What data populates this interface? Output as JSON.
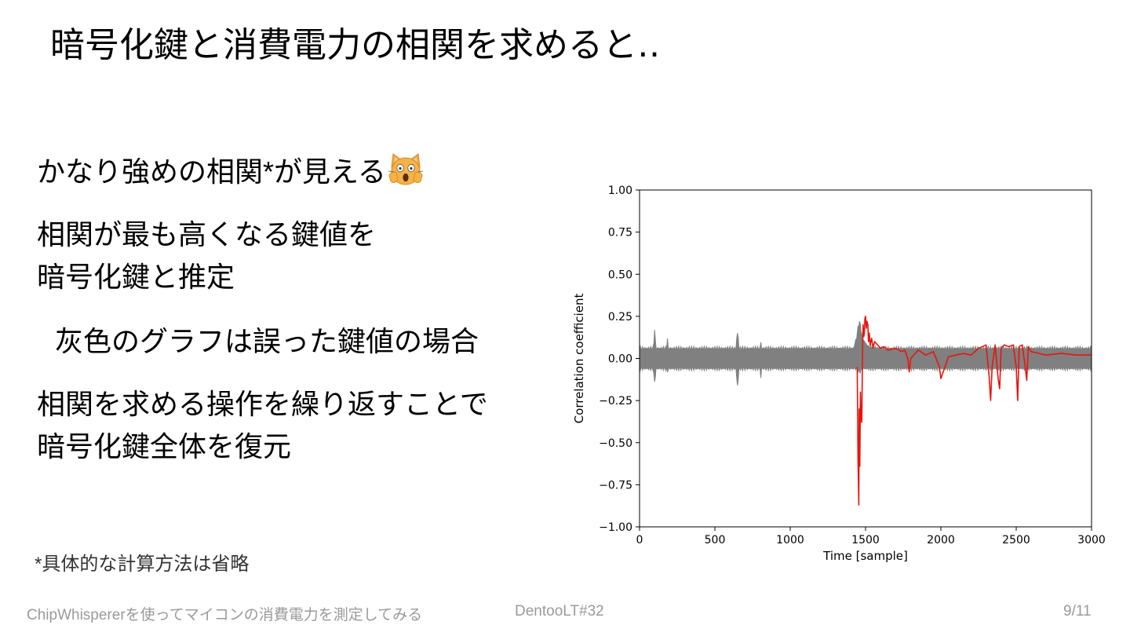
{
  "slide": {
    "title": "暗号化鍵と消費電力の相関を求めると‥",
    "bullets": [
      {
        "lines": [
          "かなり強めの相関*が見える"
        ],
        "emoji": "face-screaming-cat-icon"
      },
      {
        "lines": [
          "相関が最も高くなる鍵値を",
          "暗号化鍵と推定"
        ]
      },
      {
        "lines": [
          "灰色のグラフは誤った鍵値の場合"
        ]
      },
      {
        "lines": [
          "相関を求める操作を繰り返すことで",
          "暗号化鍵全体を復元"
        ]
      }
    ],
    "footnote": "*具体的な計算方法は省略"
  },
  "footer": {
    "left": "ChipWhispererを使ってマイコンの消費電力を測定してみる",
    "center": "DentooLT#32",
    "page": "9/11"
  },
  "colors": {
    "correct_key": "#e8140e",
    "wrong_keys": "#808080"
  },
  "chart_data": {
    "type": "line",
    "title": "",
    "xlabel": "Time [sample]",
    "ylabel": "Correlation coefficient",
    "xlim": [
      0,
      3000
    ],
    "ylim": [
      -1.0,
      1.0
    ],
    "xticks": [
      "0",
      "500",
      "1000",
      "1500",
      "2000",
      "2500",
      "3000"
    ],
    "yticks": [
      "1.00",
      "0.75",
      "0.50",
      "0.25",
      "0.00",
      "−0.25",
      "−0.50",
      "−0.75",
      "−1.00"
    ],
    "grid": false,
    "legend": "none",
    "series": [
      {
        "color": "#808080",
        "band": {
          "upper": 0.06,
          "lower": -0.06
        },
        "x": [
          0,
          90,
          95,
          100,
          105,
          110,
          180,
          185,
          190,
          640,
          645,
          650,
          655,
          660,
          800,
          805,
          810,
          1420,
          1440,
          1450,
          1460,
          1470,
          1480,
          1500,
          1520,
          1600,
          3000
        ],
        "y_upper": [
          0.06,
          0.06,
          0.1,
          0.17,
          0.1,
          0.06,
          0.06,
          0.12,
          0.06,
          0.06,
          0.12,
          0.15,
          0.12,
          0.06,
          0.06,
          0.1,
          0.06,
          0.06,
          0.12,
          0.18,
          0.22,
          0.17,
          0.12,
          0.09,
          0.07,
          0.06,
          0.06
        ],
        "y_lower": [
          -0.06,
          -0.06,
          -0.1,
          -0.14,
          -0.1,
          -0.06,
          -0.06,
          -0.08,
          -0.06,
          -0.06,
          -0.12,
          -0.16,
          -0.12,
          -0.06,
          -0.06,
          -0.12,
          -0.06,
          -0.06,
          -0.06,
          -0.07,
          -0.08,
          -0.07,
          -0.06,
          -0.06,
          -0.06,
          -0.06,
          -0.06
        ]
      },
      {
        "color": "#e8140e",
        "x": [
          1445,
          1450,
          1455,
          1458,
          1462,
          1466,
          1470,
          1475,
          1480,
          1484,
          1488,
          1492,
          1496,
          1500,
          1505,
          1510,
          1515,
          1520,
          1525,
          1530,
          1540,
          1550,
          1560,
          1580,
          1600,
          1620,
          1650,
          1700,
          1740,
          1760,
          1780,
          1790,
          1800,
          1850,
          1900,
          1950,
          1990,
          2000,
          2050,
          2100,
          2150,
          2200,
          2250,
          2300,
          2320,
          2330,
          2340,
          2360,
          2380,
          2390,
          2400,
          2420,
          2450,
          2480,
          2500,
          2510,
          2520,
          2540,
          2560,
          2570,
          2580,
          2600,
          2650,
          2700,
          2800,
          2900,
          3000
        ],
        "y": [
          -0.05,
          -0.6,
          -0.87,
          -0.3,
          -0.64,
          -0.2,
          -0.35,
          -0.38,
          0.05,
          0.2,
          0.13,
          0.15,
          0.24,
          0.25,
          0.18,
          0.22,
          0.2,
          0.1,
          0.15,
          0.08,
          0.12,
          0.06,
          0.1,
          0.08,
          0.06,
          0.07,
          0.05,
          0.06,
          0.04,
          0.05,
          0.0,
          -0.08,
          0.0,
          0.05,
          0.02,
          0.04,
          -0.05,
          -0.12,
          0.01,
          0.02,
          0.03,
          0.02,
          0.06,
          0.08,
          -0.1,
          -0.25,
          -0.05,
          0.08,
          -0.12,
          -0.18,
          0.06,
          0.08,
          0.07,
          0.08,
          -0.05,
          -0.25,
          0.07,
          0.08,
          -0.05,
          -0.13,
          0.07,
          0.04,
          0.03,
          0.02,
          0.03,
          0.02,
          0.02
        ]
      }
    ]
  }
}
